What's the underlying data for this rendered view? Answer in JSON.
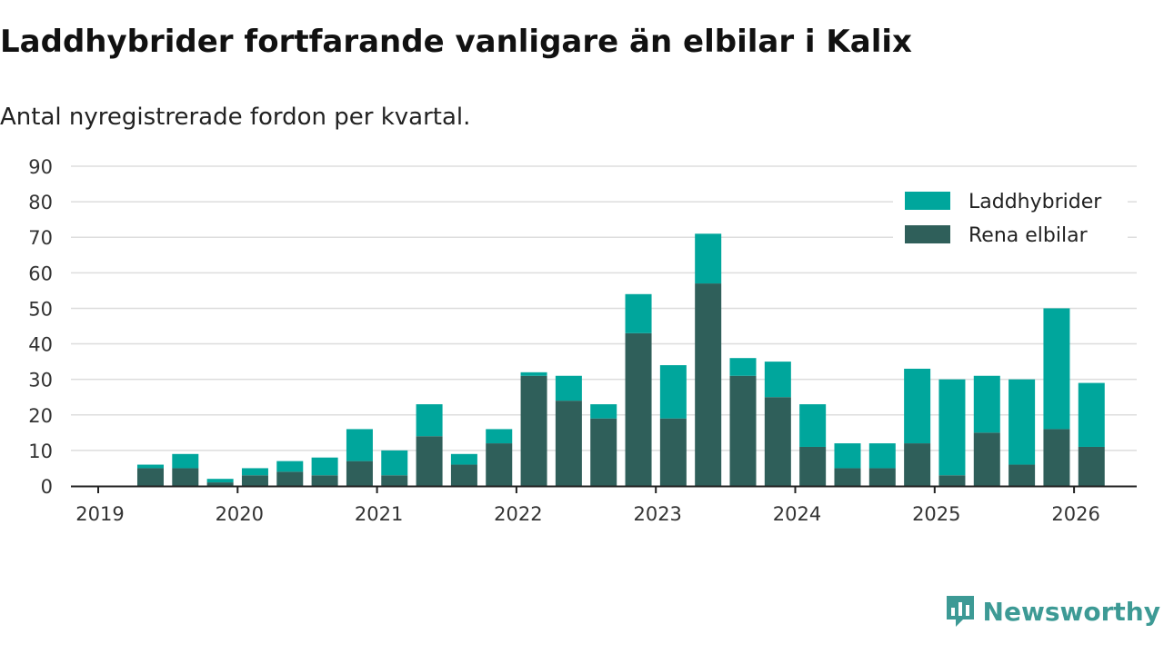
{
  "header": {
    "title": "Laddhybrider fortfarande vanligare än elbilar i Kalix",
    "subtitle": "Antal nyregistrerade fordon per kvartal."
  },
  "brand": {
    "name": "Newsworthy",
    "icon": "newsworthy-logo-icon"
  },
  "colors": {
    "laddhybrider": "#00a69c",
    "rena_elbilar": "#2f5f5a",
    "axis": "#222222",
    "grid": "#dddddd"
  },
  "chart_data": {
    "type": "bar",
    "stacked": true,
    "title": "Laddhybrider fortfarande vanligare än elbilar i Kalix",
    "subtitle": "Antal nyregistrerade fordon per kvartal.",
    "xlabel": "",
    "ylabel": "",
    "ylim": [
      0,
      90
    ],
    "yticks": [
      0,
      10,
      20,
      30,
      40,
      50,
      60,
      70,
      80,
      90
    ],
    "xticks": [
      "2019",
      "2020",
      "2021",
      "2022",
      "2023",
      "2024",
      "2025",
      "2026"
    ],
    "grid": true,
    "legend_position": "top-right",
    "categories": [
      "2019 Q2",
      "2019 Q3",
      "2019 Q4",
      "2020 Q1",
      "2020 Q2",
      "2020 Q3",
      "2020 Q4",
      "2021 Q1",
      "2021 Q2",
      "2021 Q3",
      "2021 Q4",
      "2022 Q1",
      "2022 Q2",
      "2022 Q3",
      "2022 Q4",
      "2023 Q1",
      "2023 Q2",
      "2023 Q3",
      "2023 Q4",
      "2024 Q1",
      "2024 Q2",
      "2024 Q3",
      "2024 Q4",
      "2025 Q1",
      "2025 Q2",
      "2025 Q3",
      "2025 Q4",
      "2026 Q1"
    ],
    "series": [
      {
        "name": "Rena elbilar",
        "values": [
          5,
          5,
          1,
          3,
          4,
          3,
          7,
          3,
          14,
          6,
          12,
          31,
          24,
          19,
          43,
          19,
          57,
          31,
          25,
          11,
          5,
          5,
          12,
          3,
          15,
          6,
          16,
          11
        ]
      },
      {
        "name": "Laddhybrider",
        "values": [
          1,
          4,
          1,
          2,
          3,
          5,
          9,
          7,
          9,
          3,
          4,
          1,
          7,
          4,
          11,
          15,
          14,
          5,
          10,
          12,
          7,
          7,
          21,
          27,
          16,
          24,
          34,
          18
        ]
      }
    ]
  }
}
